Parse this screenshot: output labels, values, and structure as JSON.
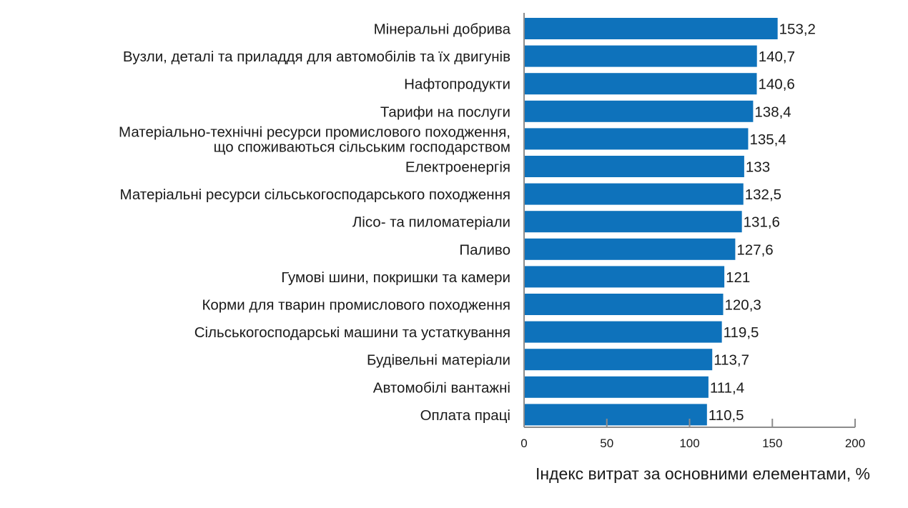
{
  "chart_data": {
    "type": "bar",
    "orientation": "horizontal",
    "title": "",
    "xlabel": "Індекс витрат за основними елементами, %",
    "ylabel": "",
    "xlim": [
      0,
      200
    ],
    "xticks": [
      "0",
      "50",
      "100",
      "150",
      "200"
    ],
    "grid": false,
    "bar_color": "#0e72bb",
    "categories": [
      [
        "Мінеральні добрива"
      ],
      [
        "Вузли, деталі та приладдя для автомобілів та їх двигунів"
      ],
      [
        "Нафтопродукти"
      ],
      [
        "Тарифи на послуги"
      ],
      [
        "Матеріально-технічні ресурси промислового походження,",
        "що споживаються  сільським господарством"
      ],
      [
        "Електроенергія"
      ],
      [
        "Матеріальні ресурси сільськогосподарського  походження"
      ],
      [
        "Лісо- та пиломатеріали"
      ],
      [
        "Паливо"
      ],
      [
        "Гумові шини, покришки та камери"
      ],
      [
        "Корми для тварин промислового походження"
      ],
      [
        "Сільськогосподарські  машини та устаткування"
      ],
      [
        "Будівельні матеріали"
      ],
      [
        "Автомобілі вантажні"
      ],
      [
        "Оплата праці"
      ]
    ],
    "values": [
      153.2,
      140.7,
      140.6,
      138.4,
      135.4,
      133,
      132.5,
      131.6,
      127.6,
      121,
      120.3,
      119.5,
      113.7,
      111.4,
      110.5
    ],
    "value_labels": [
      "153,2",
      "140,7",
      "140,6",
      "138,4",
      "135,4",
      "133",
      "132,5",
      "131,6",
      "127,6",
      "121",
      "120,3",
      "119,5",
      "113,7",
      "111,4",
      "110,5"
    ]
  }
}
